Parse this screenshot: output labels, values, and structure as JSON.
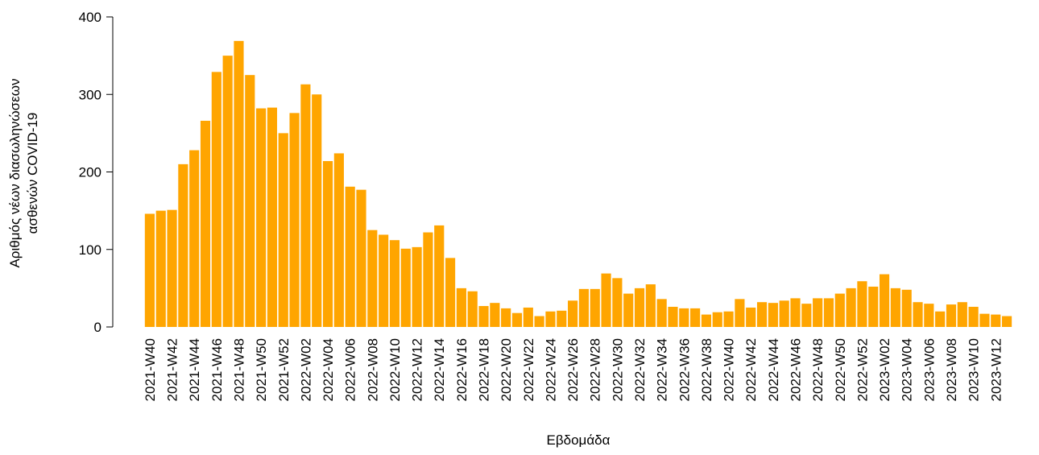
{
  "chart_data": {
    "type": "bar",
    "xlabel": "Εβδομάδα",
    "ylabel": [
      "Αριθμός νέων διασωληνώσεων",
      "ασθενών COVID-19"
    ],
    "color": "#ffa500",
    "ylim": [
      0,
      400
    ],
    "yticks": [
      0,
      100,
      200,
      300,
      400
    ],
    "categories": [
      "2021-W40",
      null,
      "2021-W42",
      null,
      "2021-W44",
      null,
      "2021-W46",
      null,
      "2021-W48",
      null,
      "2021-W50",
      null,
      "2021-W52",
      null,
      "2022-W02",
      null,
      "2022-W04",
      null,
      "2022-W06",
      null,
      "2022-W08",
      null,
      "2022-W10",
      null,
      "2022-W12",
      null,
      "2022-W14",
      null,
      "2022-W16",
      null,
      "2022-W18",
      null,
      "2022-W20",
      null,
      "2022-W22",
      null,
      "2022-W24",
      null,
      "2022-W26",
      null,
      "2022-W28",
      null,
      "2022-W30",
      null,
      "2022-W32",
      null,
      "2022-W34",
      null,
      "2022-W36",
      null,
      "2022-W38",
      null,
      "2022-W40",
      null,
      "2022-W42",
      null,
      "2022-W44",
      null,
      "2022-W46",
      null,
      "2022-W48",
      null,
      "2022-W50",
      null,
      "2022-W52",
      null,
      "2023-W02",
      null,
      "2023-W04",
      null,
      "2023-W06",
      null,
      "2023-W08",
      null,
      "2023-W10",
      null,
      "2023-W12",
      null
    ],
    "values": [
      146,
      150,
      151,
      210,
      228,
      266,
      329,
      350,
      369,
      325,
      282,
      283,
      250,
      276,
      313,
      300,
      214,
      224,
      181,
      177,
      125,
      119,
      112,
      101,
      103,
      122,
      131,
      89,
      50,
      46,
      27,
      31,
      24,
      18,
      25,
      14,
      20,
      21,
      34,
      49,
      49,
      69,
      63,
      43,
      50,
      55,
      36,
      26,
      24,
      24,
      16,
      19,
      20,
      36,
      25,
      32,
      31,
      34,
      37,
      30,
      37,
      37,
      43,
      50,
      59,
      52,
      68,
      50,
      48,
      32,
      30,
      20,
      29,
      32,
      26,
      17,
      16,
      14
    ]
  }
}
